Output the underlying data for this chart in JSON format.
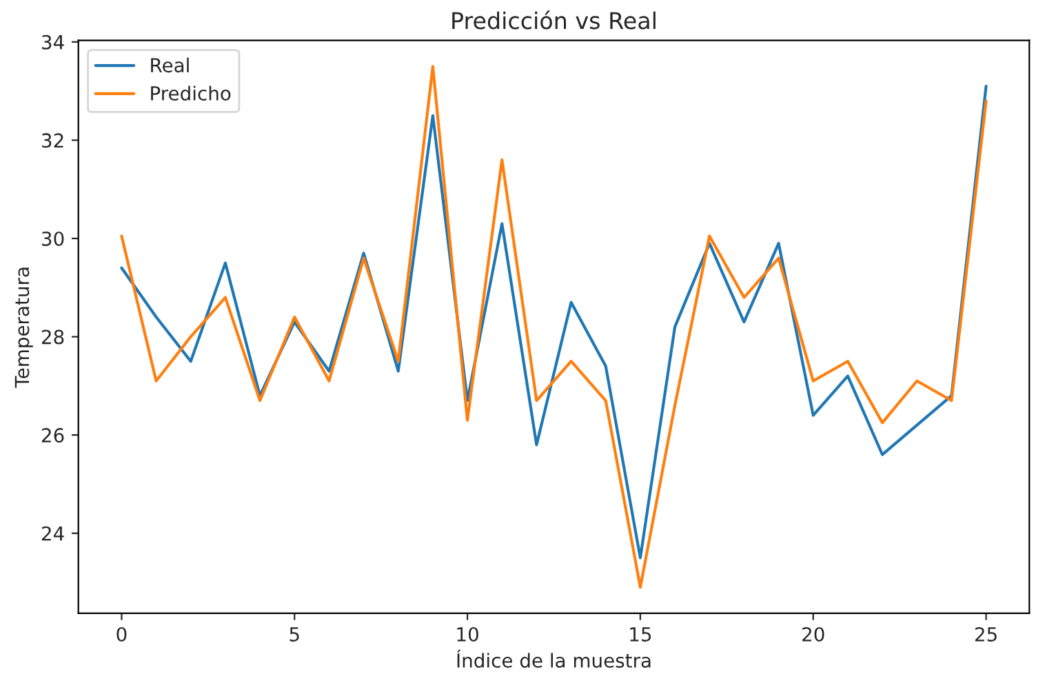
{
  "chart_data": {
    "type": "line",
    "title": "Predicción vs Real",
    "xlabel": "Índice de la muestra",
    "ylabel": "Temperatura",
    "x": [
      0,
      1,
      2,
      3,
      4,
      5,
      6,
      7,
      8,
      9,
      10,
      11,
      12,
      13,
      14,
      15,
      16,
      17,
      18,
      19,
      20,
      21,
      22,
      23,
      24,
      25
    ],
    "series": [
      {
        "name": "Real",
        "color": "#1f77b4",
        "values": [
          29.4,
          28.4,
          27.5,
          29.5,
          26.8,
          28.3,
          27.3,
          29.7,
          27.3,
          32.5,
          26.7,
          30.3,
          25.8,
          28.7,
          27.4,
          23.5,
          28.2,
          29.9,
          28.3,
          29.9,
          26.4,
          27.2,
          25.6,
          26.2,
          26.8,
          33.1
        ]
      },
      {
        "name": "Predicho",
        "color": "#ff7f0e",
        "values": [
          30.05,
          27.1,
          28.0,
          28.8,
          26.7,
          28.4,
          27.1,
          29.6,
          27.5,
          33.5,
          26.3,
          31.6,
          26.7,
          27.5,
          26.7,
          22.9,
          26.6,
          30.05,
          28.8,
          29.6,
          27.1,
          27.5,
          26.25,
          27.1,
          26.7,
          32.8
        ]
      }
    ],
    "xlim": [
      -1.25,
      26.25
    ],
    "ylim": [
      22.37,
      34.03
    ],
    "xticks": [
      0,
      5,
      10,
      15,
      20,
      25
    ],
    "yticks": [
      24,
      26,
      28,
      30,
      32,
      34
    ],
    "grid": false,
    "legend": "top left",
    "marker": "none",
    "line_style": "solid"
  }
}
